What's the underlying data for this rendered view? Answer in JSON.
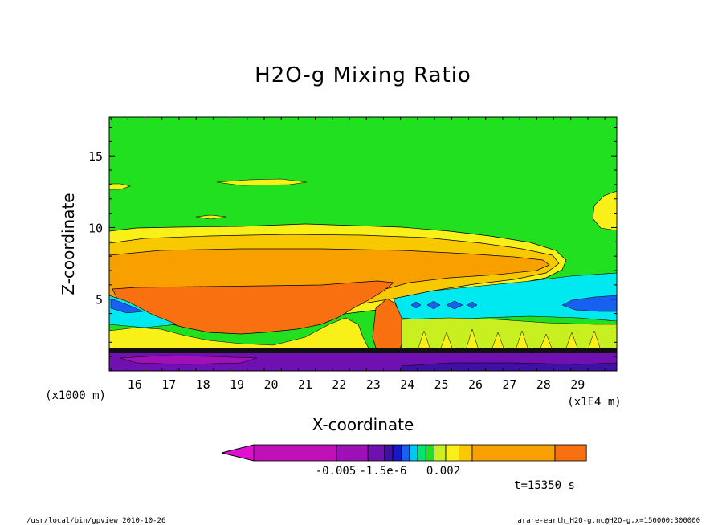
{
  "chart_data": {
    "type": "heatmap",
    "title": "H2O-g Mixing Ratio",
    "xlabel": "X-coordinate",
    "ylabel": "Z-coordinate",
    "x_unit_label": "(x1E4 m)",
    "y_unit_label": "(x1000 m)",
    "x_ticks": [
      "16",
      "17",
      "18",
      "19",
      "20",
      "21",
      "22",
      "23",
      "24",
      "25",
      "26",
      "27",
      "28",
      "29"
    ],
    "y_ticks": [
      "5",
      "10",
      "15"
    ],
    "xlim": [
      15.25,
      30.15
    ],
    "ylim": [
      0,
      17.7
    ],
    "colorbar": {
      "labels": [
        "-0.005",
        "-1.5e-6",
        "0.002"
      ],
      "colors": [
        "#e010d0",
        "#c010b8",
        "#a010b8",
        "#7010b0",
        "#4010a0",
        "#1818c8",
        "#1860f0",
        "#00c8f0",
        "#00e870",
        "#20e020",
        "#c8f020",
        "#f8f018",
        "#f8c800",
        "#f8a000",
        "#f87010",
        "#f82020"
      ]
    },
    "colors": {
      "background": "#20e020",
      "low_purple": "#7010b0",
      "dark_band": "#101010",
      "orange": "#f87010",
      "light_orange": "#f8a000",
      "gold": "#f8c800",
      "yellow": "#f8f018",
      "cyan": "#00e8f0",
      "blue": "#1860f0",
      "magenta": "#c010b8"
    },
    "time_label": "t=15350 s",
    "footer_left": "/usr/local/bin/gpview  2010-10-26",
    "footer_right": "arare-earth_H2O-g.nc@H2O-g,x=150000:300000"
  }
}
